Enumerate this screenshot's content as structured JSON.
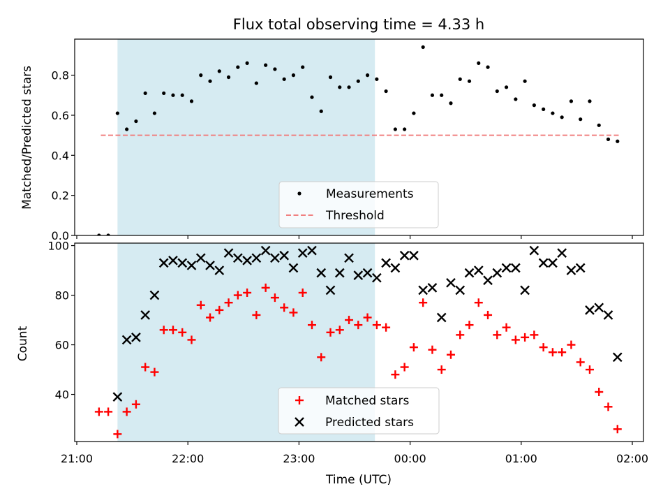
{
  "figure": {
    "title": "Flux total observing time = 4.33 h",
    "xlabel": "Time (UTC)"
  },
  "colors": {
    "shade": "#add8e6",
    "matched": "#ff0000",
    "predicted": "#000000",
    "threshold": "#f08080",
    "measure": "#000000"
  },
  "chart_data": [
    {
      "type": "scatter",
      "ylabel": "Matched/Predicted stars",
      "ylim": [
        0,
        0.98
      ],
      "yticks": [
        0.0,
        0.2,
        0.4,
        0.6,
        0.8
      ],
      "xlim": [
        "21:00",
        "02:00"
      ],
      "shaded_interval": [
        "21:22",
        "23:41+1"
      ],
      "legend": {
        "position": "bottom-center",
        "entries": [
          "Measurements",
          "Threshold"
        ]
      },
      "threshold": {
        "name": "Threshold",
        "value": 0.5,
        "x_range": [
          "21:13",
          "02:00"
        ]
      },
      "series": [
        {
          "name": "Measurements",
          "marker": "dot",
          "x": [
            "21:12",
            "21:17",
            "21:22",
            "21:27",
            "21:32",
            "21:37",
            "21:42",
            "21:47",
            "21:52",
            "21:57",
            "22:02",
            "22:07",
            "22:12",
            "22:17",
            "22:22",
            "22:27",
            "22:32",
            "22:37",
            "22:42",
            "22:47",
            "22:52",
            "22:57",
            "23:02",
            "23:07",
            "23:12",
            "23:17",
            "23:22",
            "23:27",
            "23:32",
            "23:37",
            "23:42",
            "23:47",
            "23:52",
            "23:57",
            "00:02",
            "00:07",
            "00:12",
            "00:17",
            "00:22",
            "00:27",
            "00:32",
            "00:37",
            "00:42",
            "00:47",
            "00:52",
            "00:57",
            "01:02",
            "01:07",
            "01:12",
            "01:17",
            "01:22",
            "01:27",
            "01:32",
            "01:37",
            "01:42",
            "01:47",
            "01:52"
          ],
          "y": [
            0.0,
            0.0,
            0.61,
            0.53,
            0.57,
            0.71,
            0.61,
            0.71,
            0.7,
            0.7,
            0.67,
            0.8,
            0.77,
            0.82,
            0.79,
            0.84,
            0.86,
            0.76,
            0.85,
            0.83,
            0.78,
            0.8,
            0.84,
            0.69,
            0.62,
            0.79,
            0.74,
            0.74,
            0.77,
            0.8,
            0.78,
            0.72,
            0.53,
            0.53,
            0.61,
            0.94,
            0.7,
            0.7,
            0.66,
            0.78,
            0.77,
            0.86,
            0.84,
            0.72,
            0.74,
            0.68,
            0.77,
            0.65,
            0.63,
            0.61,
            0.59,
            0.67,
            0.58,
            0.67,
            0.55,
            0.48,
            0.47
          ]
        }
      ]
    },
    {
      "type": "scatter",
      "ylabel": "Count",
      "ylim": [
        21,
        101
      ],
      "yticks": [
        40,
        60,
        80,
        100
      ],
      "xlim": [
        "21:00",
        "02:00"
      ],
      "xticks": [
        "21:00",
        "22:00",
        "23:00",
        "00:00",
        "01:00",
        "02:00"
      ],
      "shaded_interval": [
        "21:22",
        "23:41+1"
      ],
      "legend": {
        "position": "bottom-center",
        "entries": [
          "Matched stars",
          "Predicted stars"
        ]
      },
      "series": [
        {
          "name": "Matched stars",
          "marker": "+",
          "x": [
            "21:12",
            "21:17",
            "21:22",
            "21:27",
            "21:32",
            "21:37",
            "21:42",
            "21:47",
            "21:52",
            "21:57",
            "22:02",
            "22:07",
            "22:12",
            "22:17",
            "22:22",
            "22:27",
            "22:32",
            "22:37",
            "22:42",
            "22:47",
            "22:52",
            "22:57",
            "23:02",
            "23:07",
            "23:12",
            "23:17",
            "23:22",
            "23:27",
            "23:32",
            "23:37",
            "23:42",
            "23:47",
            "23:52",
            "23:57",
            "00:02",
            "00:07",
            "00:12",
            "00:17",
            "00:22",
            "00:27",
            "00:32",
            "00:37",
            "00:42",
            "00:47",
            "00:52",
            "00:57",
            "01:02",
            "01:07",
            "01:12",
            "01:17",
            "01:22",
            "01:27",
            "01:32",
            "01:37",
            "01:42",
            "01:47",
            "01:52"
          ],
          "y": [
            33,
            33,
            24,
            33,
            36,
            51,
            49,
            66,
            66,
            65,
            62,
            76,
            71,
            74,
            77,
            80,
            81,
            72,
            83,
            79,
            75,
            73,
            81,
            68,
            55,
            65,
            66,
            70,
            68,
            71,
            68,
            67,
            48,
            51,
            59,
            77,
            58,
            50,
            56,
            64,
            68,
            77,
            72,
            64,
            67,
            62,
            63,
            64,
            59,
            57,
            57,
            60,
            53,
            50,
            41,
            35,
            26
          ]
        },
        {
          "name": "Predicted stars",
          "marker": "x",
          "x": [
            "21:22",
            "21:27",
            "21:32",
            "21:37",
            "21:42",
            "21:47",
            "21:52",
            "21:57",
            "22:02",
            "22:07",
            "22:12",
            "22:17",
            "22:22",
            "22:27",
            "22:32",
            "22:37",
            "22:42",
            "22:47",
            "22:52",
            "22:57",
            "23:02",
            "23:07",
            "23:12",
            "23:17",
            "23:22",
            "23:27",
            "23:32",
            "23:37",
            "23:42",
            "23:47",
            "23:52",
            "23:57",
            "00:02",
            "00:07",
            "00:12",
            "00:17",
            "00:22",
            "00:27",
            "00:32",
            "00:37",
            "00:42",
            "00:47",
            "00:52",
            "00:57",
            "01:02",
            "01:07",
            "01:12",
            "01:17",
            "01:22",
            "01:27",
            "01:32",
            "01:37",
            "01:42",
            "01:47",
            "01:52"
          ],
          "y": [
            39,
            62,
            63,
            72,
            80,
            93,
            94,
            93,
            92,
            95,
            92,
            90,
            97,
            95,
            94,
            95,
            98,
            95,
            96,
            91,
            97,
            98,
            89,
            82,
            89,
            95,
            88,
            89,
            87,
            93,
            91,
            96,
            96,
            82,
            83,
            71,
            85,
            82,
            89,
            90,
            86,
            89,
            91,
            91,
            82,
            98,
            93,
            93,
            97,
            90,
            91,
            74,
            75,
            72,
            55
          ]
        }
      ]
    }
  ]
}
